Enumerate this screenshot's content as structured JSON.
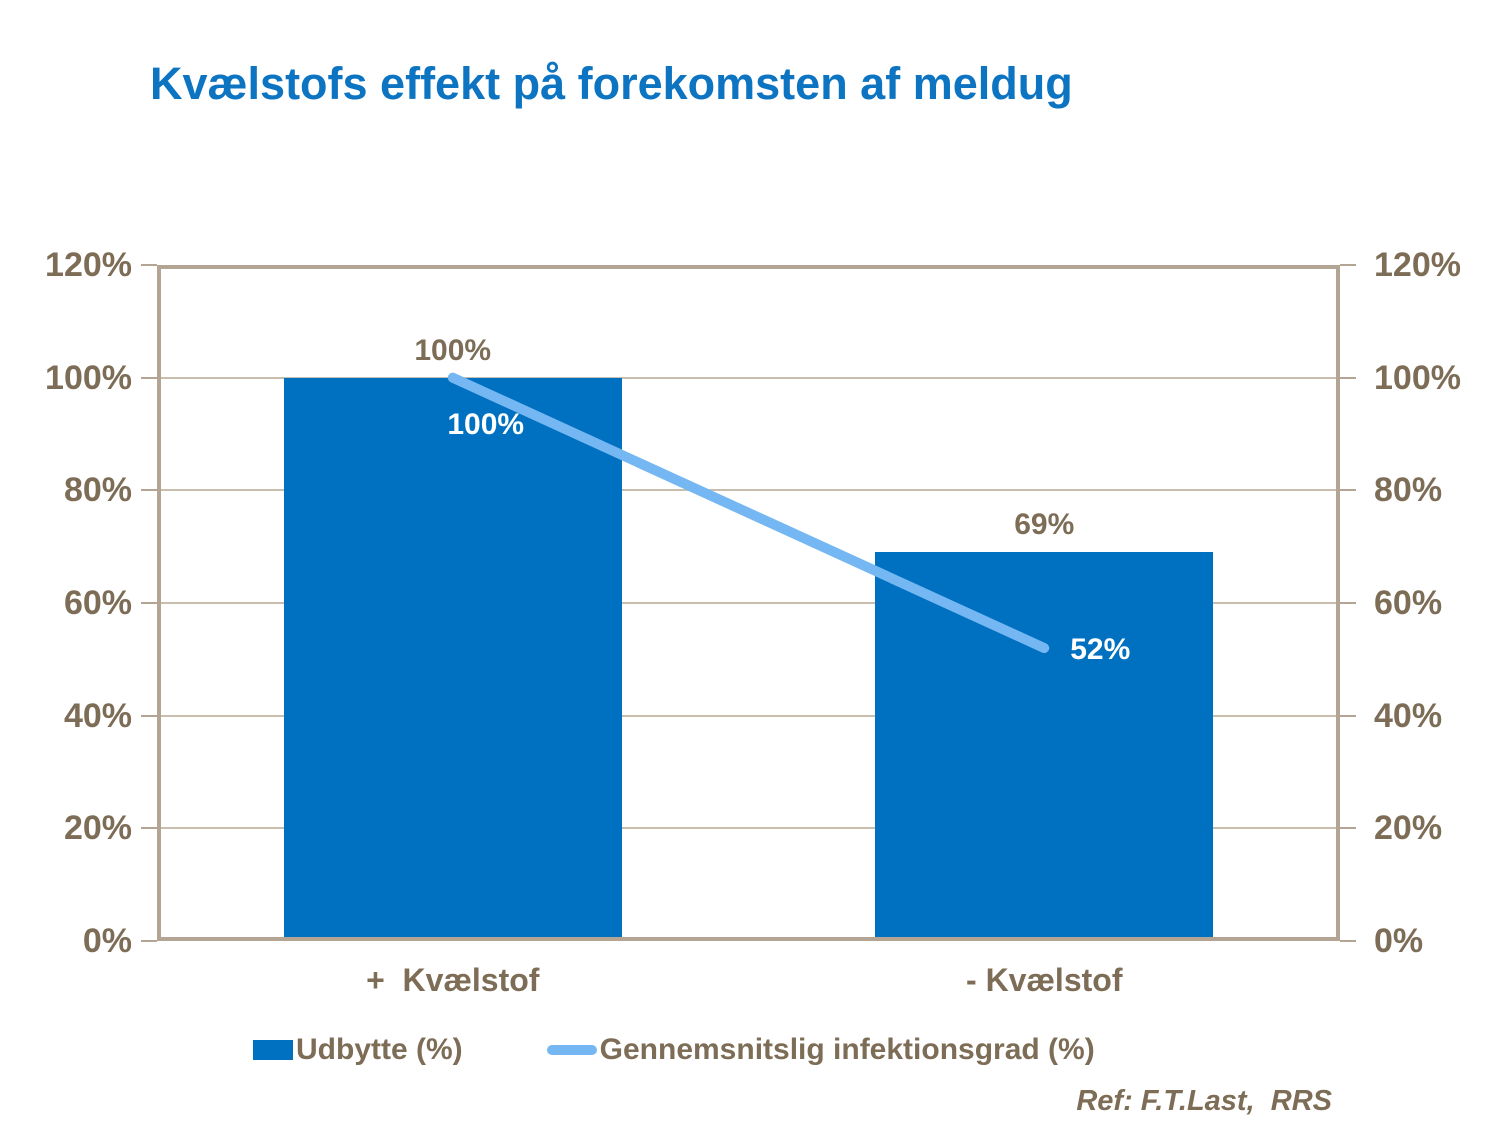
{
  "title": {
    "text": "Kvælstofs effekt på forekomsten af meldug",
    "color": "#0D74C2"
  },
  "legend": {
    "position": "bottom",
    "items": [
      {
        "label": "Udbytte (%)",
        "marker": "bar-swatch",
        "color": "#0070C0"
      },
      {
        "label": "Gennemsnitslig infektionsgrad (%)",
        "marker": "line-swatch",
        "color": "#74B7F2"
      }
    ]
  },
  "footer": {
    "ref_text": "Ref: F.T.Last,  RRS"
  },
  "colors": {
    "background": "#FFFFFF",
    "title": "#0D74C2",
    "axis_text": "#7D6D57",
    "plot_border": "#B3A493",
    "gridline": "#C9BDAE",
    "bar": "#0070C0",
    "line": "#74B7F2",
    "line_label_text": "#FFFFFF"
  },
  "chart_data": {
    "type": "bar",
    "title": "Kvælstofs effekt på forekomsten af meldug",
    "categories": [
      "+  Kvælstof",
      "- Kvælstof"
    ],
    "series": [
      {
        "name": "Udbytte (%)",
        "type": "bar",
        "values": [
          100,
          69
        ],
        "labels": [
          "100%",
          "69%"
        ],
        "color": "#0070C0"
      },
      {
        "name": "Gennemsnitslig infektionsgrad (%)",
        "type": "line",
        "values": [
          100,
          52
        ],
        "labels": [
          "100%",
          "52%"
        ],
        "color": "#74B7F2"
      }
    ],
    "xlabel": "",
    "ylabel": "",
    "ylim": [
      0,
      120
    ],
    "ytick_values": [
      0,
      20,
      40,
      60,
      80,
      100,
      120
    ],
    "ytick_labels": [
      "0%",
      "20%",
      "40%",
      "60%",
      "80%",
      "100%",
      "120%"
    ],
    "secondary_y_axis": "right axis mirrors left axis 0%-120%",
    "grid": true,
    "legend_position": "bottom",
    "annotation": "Ref: F.T.Last,  RRS"
  }
}
